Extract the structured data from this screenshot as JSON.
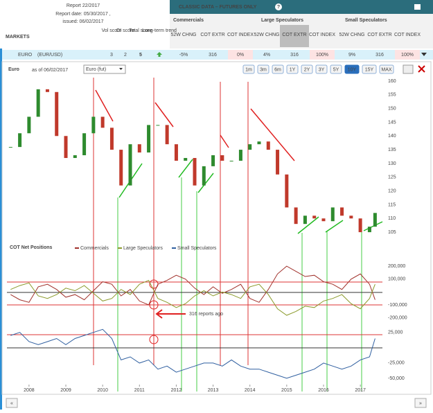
{
  "header": {
    "report": "Report 22/2017",
    "report_date": "Report date: 05/30/2017 ,",
    "issued": "issued: 06/02/2017",
    "markets": "MARKETS",
    "score_headers": [
      "Vol score",
      "OI score",
      "Total score",
      "Long-term trend"
    ],
    "classic": "CLASSIC DATA – FUTURES ONLY",
    "help": "?",
    "groups": [
      "Commercials",
      "Large Speculators",
      "Small Speculators"
    ],
    "columns": [
      "52W CHNG",
      "COT EXTR",
      "COT INDEX"
    ]
  },
  "row": {
    "market": "EURO",
    "symbol": "(EUR/USD)",
    "scores": [
      3,
      2,
      5
    ],
    "cells": [
      "-5%",
      "316",
      "0%",
      "4%",
      "316",
      "100%",
      "9%",
      "316",
      "100%"
    ]
  },
  "toolbar": {
    "title": "Euro",
    "as_of": "as of 06/02/2017",
    "select": "Euro (fut)",
    "ranges": [
      "1m",
      "3m",
      "6m",
      "1Y",
      "2Y",
      "3Y",
      "5Y",
      "10Y",
      "15Y",
      "MAX"
    ],
    "active": "10Y"
  },
  "nav": [
    "«",
    "»"
  ],
  "chart_data": [
    {
      "type": "candlestick",
      "x": [
        2007.5,
        2007.75,
        2008,
        2008.25,
        2008.5,
        2008.75,
        2009,
        2009.25,
        2009.5,
        2009.75,
        2010,
        2010.25,
        2010.5,
        2010.75,
        2011,
        2011.25,
        2011.5,
        2011.75,
        2012,
        2012.25,
        2012.5,
        2012.75,
        2013,
        2013.25,
        2013.5,
        2013.75,
        2014,
        2014.25,
        2014.5,
        2014.75,
        2015,
        2015.25,
        2015.5,
        2015.75,
        2016,
        2016.25,
        2016.5,
        2016.75,
        2017,
        2017.25,
        2017.4
      ],
      "values": [
        136,
        141,
        147,
        157,
        156,
        140,
        132,
        133,
        141,
        147,
        143,
        135,
        122,
        137,
        134,
        144,
        144,
        137,
        131,
        132,
        122,
        129,
        133,
        131,
        131,
        135,
        137,
        138,
        135,
        126,
        114,
        108,
        111,
        110,
        109,
        114,
        111,
        110,
        105,
        107,
        112
      ],
      "xlim": [
        2007.4,
        2017.6
      ],
      "ylim": [
        103,
        162
      ],
      "yticks": [
        105,
        110,
        115,
        120,
        125,
        130,
        135,
        140,
        145,
        150,
        155,
        160
      ],
      "color_up": "#2e8b2e",
      "color_down": "#c0392b"
    },
    {
      "type": "line",
      "title": "COT Net Positions",
      "x": [
        2007.5,
        2007.75,
        2008,
        2008.25,
        2008.5,
        2008.75,
        2009,
        2009.25,
        2009.5,
        2009.75,
        2010,
        2010.25,
        2010.5,
        2010.75,
        2011,
        2011.25,
        2011.5,
        2011.75,
        2012,
        2012.25,
        2012.5,
        2012.75,
        2013,
        2013.25,
        2013.5,
        2013.75,
        2014,
        2014.25,
        2014.5,
        2014.75,
        2015,
        2015.25,
        2015.5,
        2015.75,
        2016,
        2016.25,
        2016.5,
        2016.75,
        2017,
        2017.25,
        2017.4
      ],
      "series": [
        {
          "name": "Commercials",
          "color": "#a0302a",
          "axis": "y",
          "values": [
            -20000,
            -60000,
            -80000,
            40000,
            60000,
            20000,
            -40000,
            -20000,
            -60000,
            10000,
            80000,
            60000,
            -30000,
            20000,
            -70000,
            -100000,
            60000,
            90000,
            130000,
            100000,
            30000,
            -20000,
            40000,
            -10000,
            20000,
            60000,
            -50000,
            -80000,
            20000,
            140000,
            200000,
            160000,
            120000,
            130000,
            80000,
            60000,
            20000,
            100000,
            140000,
            60000,
            -60000
          ]
        },
        {
          "name": "Large Speculators",
          "color": "#8a9a2a",
          "axis": "y",
          "values": [
            20000,
            50000,
            70000,
            -30000,
            -50000,
            -20000,
            30000,
            10000,
            50000,
            -10000,
            -70000,
            -50000,
            20000,
            -20000,
            60000,
            90000,
            -50000,
            -80000,
            -120000,
            -90000,
            -30000,
            10000,
            -30000,
            0,
            -20000,
            -50000,
            40000,
            60000,
            -20000,
            -130000,
            -180000,
            -150000,
            -110000,
            -120000,
            -70000,
            -50000,
            -20000,
            -90000,
            -130000,
            -50000,
            60000
          ]
        },
        {
          "name": "Small Speculators",
          "color": "#2f5fa0",
          "axis": "y2",
          "values": [
            20000,
            25000,
            10000,
            5000,
            10000,
            15000,
            5000,
            15000,
            20000,
            25000,
            30000,
            15000,
            -20000,
            -15000,
            -25000,
            -20000,
            -35000,
            -30000,
            -40000,
            -35000,
            -30000,
            -25000,
            -25000,
            -30000,
            -20000,
            -30000,
            -35000,
            -35000,
            -40000,
            -45000,
            -50000,
            -45000,
            -40000,
            -35000,
            -25000,
            -30000,
            -35000,
            -30000,
            -20000,
            -15000,
            15000
          ]
        }
      ],
      "xlim": [
        2007.4,
        2017.6
      ],
      "xticks": [
        2008,
        2009,
        2010,
        2011,
        2012,
        2013,
        2014,
        2015,
        2016,
        2017
      ],
      "ylim": [
        -250000,
        265000
      ],
      "yticks": [
        {
          "value": 200000,
          "label": "200,000"
        },
        {
          "value": 100000,
          "label": "100,000"
        },
        {
          "value": -100000,
          "label": "-100,000"
        },
        {
          "value": -200000,
          "label": "-200,000"
        }
      ],
      "y2lim": [
        -58000,
        36000
      ],
      "y2ticks": [
        {
          "value": 25000,
          "label": "25,000"
        },
        {
          "value": -25000,
          "label": "-25,000"
        },
        {
          "value": -50000,
          "label": "-50,000"
        }
      ],
      "annotation": "316 reports ago"
    }
  ]
}
